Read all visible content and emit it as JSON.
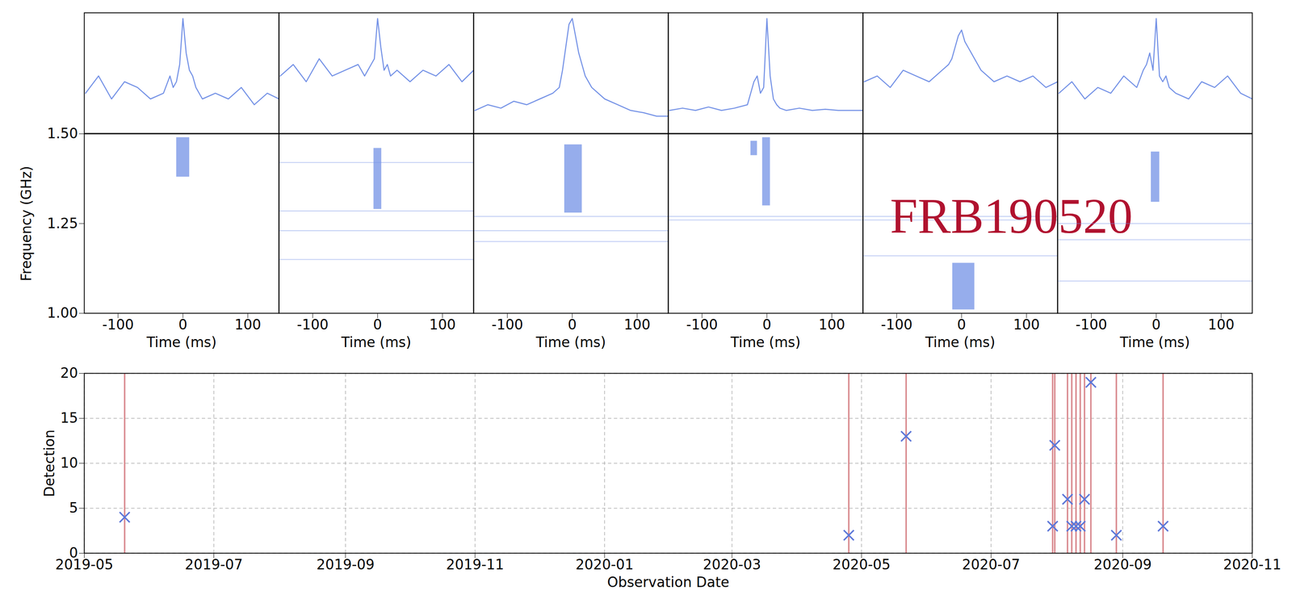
{
  "chart_data": [
    {
      "type": "pulse_waterfall",
      "xlabel": "Time (ms)",
      "ylabel": "Frequency (GHz)",
      "xlim": [
        -152,
        148
      ],
      "xticks": [
        -100,
        0,
        100
      ],
      "ylim": [
        1.0,
        1.5
      ],
      "yticks": [
        {
          "value": 1.0,
          "label": "1.00"
        },
        1.25,
        {
          "value": 1.5,
          "label": "1.50"
        }
      ],
      "profile_ylim": [
        0,
        1.05
      ],
      "color": "#7391e6",
      "profile_x": [
        -150,
        -130,
        -110,
        -90,
        -70,
        -50,
        -30,
        -20,
        -15,
        -10,
        -5,
        0,
        5,
        10,
        15,
        20,
        30,
        50,
        70,
        90,
        110,
        130,
        148
      ],
      "panels": [
        {
          "profile": [
            0.35,
            0.5,
            0.3,
            0.45,
            0.4,
            0.3,
            0.35,
            0.5,
            0.4,
            0.45,
            0.6,
            1.0,
            0.7,
            0.55,
            0.5,
            0.4,
            0.3,
            0.35,
            0.3,
            0.4,
            0.25,
            0.35,
            0.3
          ],
          "bursts": [
            [
              -10,
              10,
              1.38,
              1.49
            ]
          ],
          "rfi": []
        },
        {
          "profile": [
            0.5,
            0.6,
            0.45,
            0.65,
            0.5,
            0.55,
            0.6,
            0.5,
            0.55,
            0.6,
            0.65,
            1.0,
            0.75,
            0.55,
            0.6,
            0.5,
            0.55,
            0.45,
            0.55,
            0.5,
            0.6,
            0.45,
            0.55
          ],
          "bursts": [
            [
              -6,
              6,
              1.29,
              1.46
            ]
          ],
          "rfi": [
            1.42,
            1.285,
            1.23,
            1.15
          ]
        },
        {
          "profile": [
            0.2,
            0.25,
            0.22,
            0.28,
            0.25,
            0.3,
            0.35,
            0.4,
            0.55,
            0.75,
            0.95,
            1.0,
            0.85,
            0.7,
            0.6,
            0.5,
            0.4,
            0.3,
            0.25,
            0.2,
            0.18,
            0.15,
            0.15
          ],
          "bursts": [
            [
              -12,
              15,
              1.28,
              1.47
            ]
          ],
          "rfi": [
            1.27,
            1.23,
            1.2
          ]
        },
        {
          "profile": [
            0.2,
            0.22,
            0.2,
            0.23,
            0.2,
            0.22,
            0.25,
            0.45,
            0.5,
            0.35,
            0.4,
            1.0,
            0.5,
            0.3,
            0.25,
            0.22,
            0.2,
            0.22,
            0.2,
            0.21,
            0.2,
            0.2,
            0.2
          ],
          "bursts": [
            [
              -25,
              -15,
              1.44,
              1.48
            ],
            [
              -7,
              5,
              1.3,
              1.49
            ]
          ],
          "rfi": [
            1.27,
            1.26
          ]
        },
        {
          "profile": [
            0.45,
            0.5,
            0.4,
            0.55,
            0.5,
            0.45,
            0.55,
            0.6,
            0.65,
            0.75,
            0.85,
            0.9,
            0.8,
            0.75,
            0.7,
            0.65,
            0.55,
            0.45,
            0.5,
            0.45,
            0.5,
            0.4,
            0.45
          ],
          "bursts": [
            [
              -14,
              20,
              1.01,
              1.14
            ]
          ],
          "rfi": [
            1.27,
            1.26,
            1.16
          ],
          "annotation": {
            "text": "FRB190520",
            "color": "#b0122f"
          }
        },
        {
          "profile": [
            0.35,
            0.45,
            0.3,
            0.4,
            0.35,
            0.5,
            0.4,
            0.55,
            0.6,
            0.7,
            0.55,
            1.0,
            0.5,
            0.45,
            0.5,
            0.4,
            0.35,
            0.3,
            0.45,
            0.4,
            0.5,
            0.35,
            0.3
          ],
          "bursts": [
            [
              -8,
              5,
              1.31,
              1.45
            ]
          ],
          "rfi": [
            1.25,
            1.205,
            1.09
          ]
        }
      ]
    },
    {
      "type": "scatter",
      "xlabel": "Observation Date",
      "ylabel": "Detection",
      "x": [
        "2019-05-20",
        "2020-04-25",
        "2020-05-22",
        "2020-07-30",
        "2020-07-31",
        "2020-08-06",
        "2020-08-08",
        "2020-08-10",
        "2020-08-12",
        "2020-08-14",
        "2020-08-17",
        "2020-08-29",
        "2020-09-20"
      ],
      "values": [
        4,
        2,
        13,
        3,
        12,
        6,
        3,
        3,
        3,
        6,
        19,
        2,
        3
      ],
      "xlim": [
        "2019-05-01",
        "2020-11-01"
      ],
      "xticks": [
        {
          "value": "2019-05-01",
          "label": "2019-05"
        },
        {
          "value": "2019-07-01",
          "label": "2019-07"
        },
        {
          "value": "2019-09-01",
          "label": "2019-09"
        },
        {
          "value": "2019-11-01",
          "label": "2019-11"
        },
        {
          "value": "2020-01-01",
          "label": "2020-01"
        },
        {
          "value": "2020-03-01",
          "label": "2020-03"
        },
        {
          "value": "2020-05-01",
          "label": "2020-05"
        },
        {
          "value": "2020-07-01",
          "label": "2020-07"
        },
        {
          "value": "2020-09-01",
          "label": "2020-09"
        },
        {
          "value": "2020-11-01",
          "label": "2020-11"
        }
      ],
      "ylim": [
        0,
        20
      ],
      "yticks": [
        0,
        5,
        10,
        15,
        20
      ],
      "grid": true,
      "marker": "x",
      "color": "#5d77d8",
      "line_color": "#d98a8f"
    }
  ]
}
